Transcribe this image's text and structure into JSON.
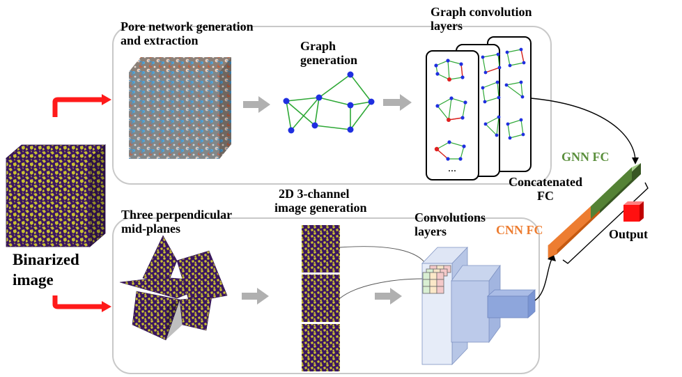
{
  "labels": {
    "pore_network_1": "Pore network generation",
    "pore_network_2": "and extraction",
    "graph_gen_1": "Graph",
    "graph_gen_2": "generation",
    "graph_conv_1": "Graph convolution",
    "graph_conv_2": "layers",
    "ellipsis": "...",
    "image_gen_1": "2D 3-channel",
    "image_gen_2": "image generation",
    "mid_planes_1": "Three perpendicular",
    "mid_planes_2": "mid-planes",
    "conv_layers_1": "Convolutions",
    "conv_layers_2": "layers",
    "binarized_1": "Binarized",
    "binarized_2": "image",
    "gnn_fc": "GNN FC",
    "concat_1": "Concatenated",
    "concat_2": "FC",
    "cnn_fc": "CNN FC",
    "output": "Output"
  },
  "colors": {
    "red_arrow": "#ff1a1a",
    "gray_arrow": "#b0b0b0",
    "gnn_green": "#5a8f3c",
    "cnn_orange": "#ed7d31",
    "graph_node": "#1f2fe0",
    "graph_edge": "#2ea836",
    "highlight_edge": "#e02020",
    "binary_purple": "#3b1660",
    "binary_yellow": "#c9c132",
    "conv_block": "#b7c6e6",
    "conv_block_dark": "#8ea6dc",
    "output_cube": "#ff1010"
  },
  "icons": [
    "red-arrow-icon",
    "gray-arrow-icon",
    "cube-icon",
    "graph-icon",
    "kernel-grid-icon"
  ]
}
